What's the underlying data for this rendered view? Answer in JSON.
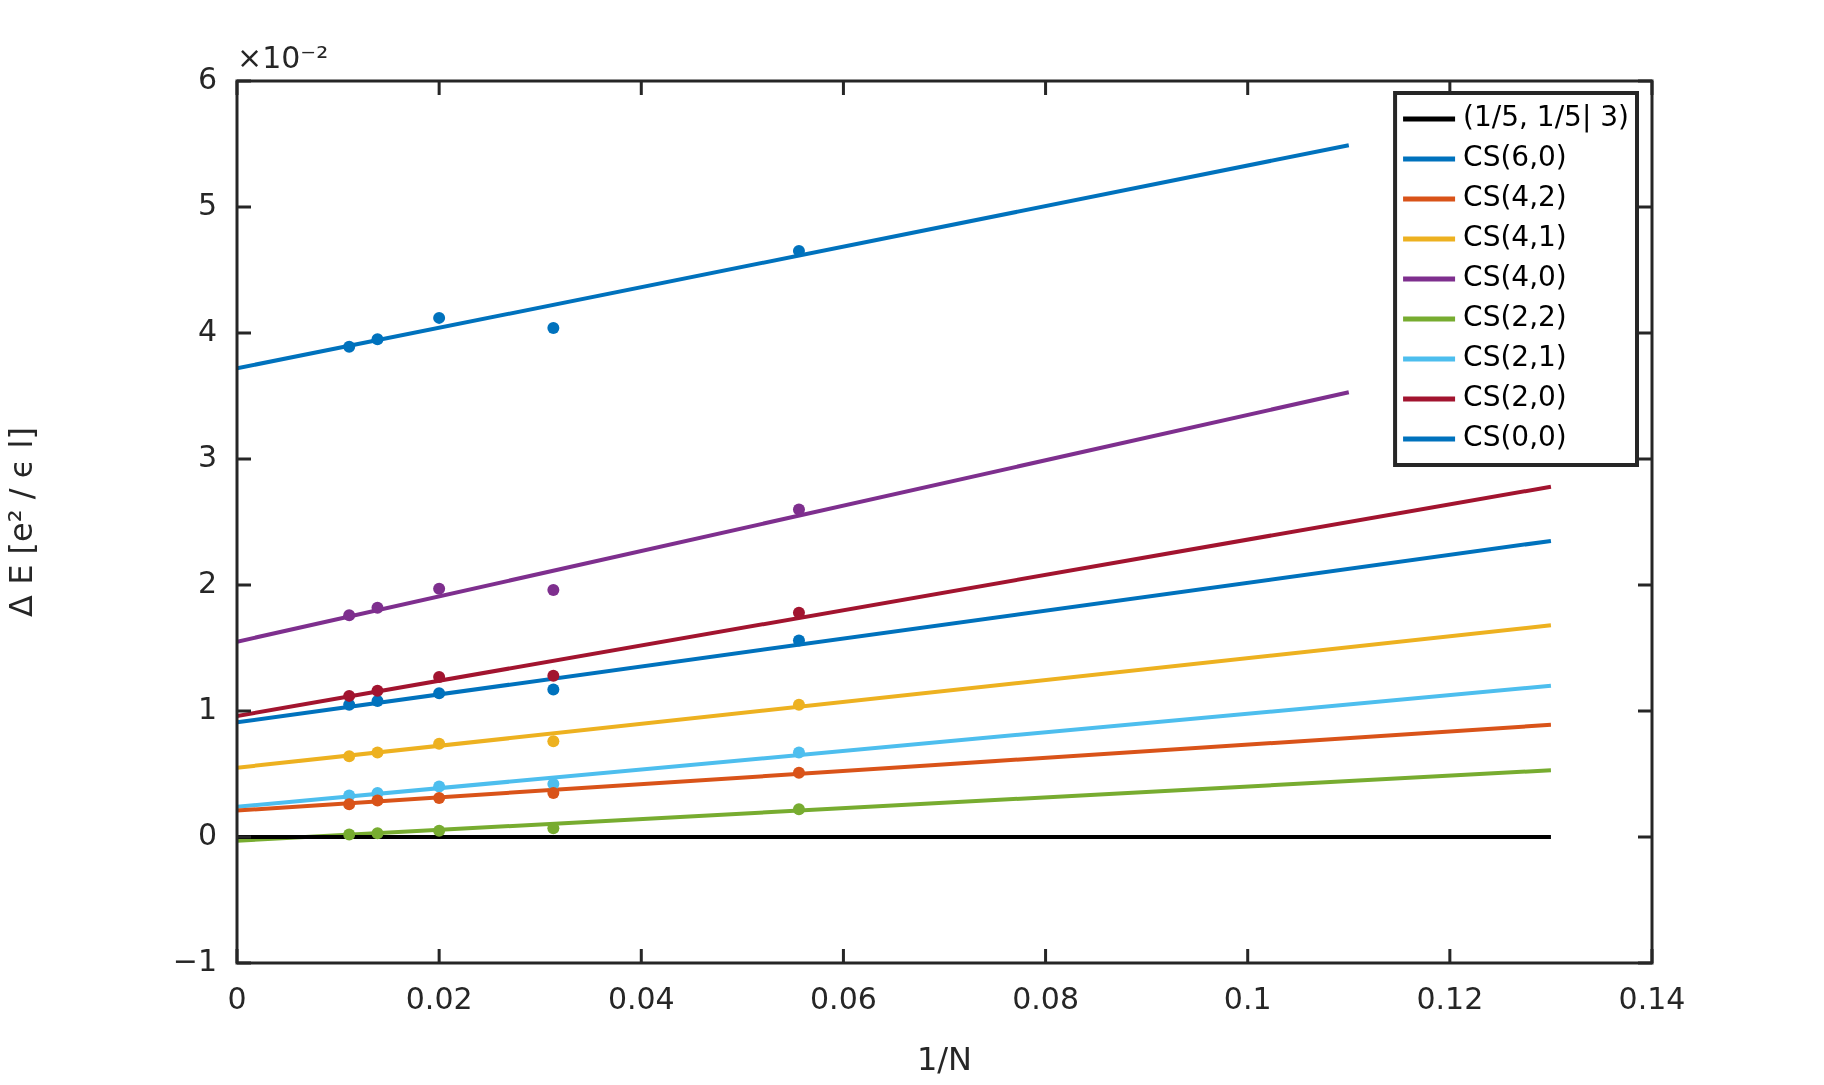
{
  "chart_data": {
    "type": "line",
    "xlabel": "1/N",
    "ylabel": "Δ E [e² / ϵ l]",
    "annotations": [
      "×10⁻²"
    ],
    "xlim": [
      0,
      0.14
    ],
    "xticks": [
      0,
      0.02,
      0.04,
      0.06,
      0.08,
      0.1,
      0.12,
      0.14
    ],
    "ylim": [
      -1,
      6
    ],
    "yticks": [
      {
        "value": -1,
        "label": "−1"
      },
      0,
      1,
      2,
      3,
      4,
      5,
      6
    ],
    "grid": false,
    "legend": "top right",
    "line_style": "solid",
    "series": [
      {
        "name": "(1/5, 1/5| 3)",
        "color": "#000000",
        "type": "line",
        "x": [
          0,
          0.13
        ],
        "values": [
          0,
          0
        ]
      },
      {
        "name": "CS(6,0)",
        "color": "#0072bd",
        "type": "line",
        "x": [
          0,
          0.11
        ],
        "values": [
          3.72,
          5.49
        ]
      },
      {
        "name": "CS(4,2)",
        "color": "#d95319",
        "type": "line",
        "x": [
          0,
          0.13
        ],
        "values": [
          0.21,
          0.89
        ]
      },
      {
        "name": "CS(4,1)",
        "color": "#edb120",
        "type": "line",
        "x": [
          0,
          0.13
        ],
        "values": [
          0.55,
          1.68
        ]
      },
      {
        "name": "CS(4,0)",
        "color": "#7e2f8e",
        "type": "line",
        "x": [
          0,
          0.11
        ],
        "values": [
          1.55,
          3.53
        ]
      },
      {
        "name": "CS(2,2)",
        "color": "#77ac30",
        "type": "line",
        "x": [
          0,
          0.13
        ],
        "values": [
          -0.03,
          0.53
        ]
      },
      {
        "name": "CS(2,1)",
        "color": "#4dbeee",
        "type": "line",
        "x": [
          0,
          0.13
        ],
        "values": [
          0.24,
          1.2
        ]
      },
      {
        "name": "CS(2,0)",
        "color": "#a2142f",
        "type": "line",
        "x": [
          0,
          0.13
        ],
        "values": [
          0.96,
          2.78
        ]
      },
      {
        "name": "CS(0,0)",
        "color": "#0072bd",
        "type": "line",
        "x": [
          0,
          0.13
        ],
        "values": [
          0.91,
          2.35
        ]
      },
      {
        "color": "#0072bd",
        "type": "scatter",
        "marker": "circle",
        "x": [
          0.0111,
          0.0139,
          0.02,
          0.0313,
          0.0556
        ],
        "values": [
          3.89,
          3.95,
          4.12,
          4.04,
          4.65
        ]
      },
      {
        "color": "#d95319",
        "type": "scatter",
        "marker": "circle",
        "x": [
          0.0111,
          0.0139,
          0.02,
          0.0313,
          0.0556
        ],
        "values": [
          0.26,
          0.29,
          0.31,
          0.35,
          0.51
        ]
      },
      {
        "color": "#edb120",
        "type": "scatter",
        "marker": "circle",
        "x": [
          0.0111,
          0.0139,
          0.02,
          0.0313,
          0.0556
        ],
        "values": [
          0.64,
          0.67,
          0.74,
          0.76,
          1.05
        ]
      },
      {
        "color": "#7e2f8e",
        "type": "scatter",
        "marker": "circle",
        "x": [
          0.0111,
          0.0139,
          0.02,
          0.0313,
          0.0556
        ],
        "values": [
          1.76,
          1.82,
          1.97,
          1.96,
          2.6
        ]
      },
      {
        "color": "#77ac30",
        "type": "scatter",
        "marker": "circle",
        "x": [
          0.0111,
          0.0139,
          0.02,
          0.0313,
          0.0556
        ],
        "values": [
          0.02,
          0.03,
          0.05,
          0.07,
          0.22
        ]
      },
      {
        "color": "#4dbeee",
        "type": "scatter",
        "marker": "circle",
        "x": [
          0.0111,
          0.0139,
          0.02,
          0.0313,
          0.0556
        ],
        "values": [
          0.33,
          0.35,
          0.4,
          0.42,
          0.67
        ]
      },
      {
        "color": "#a2142f",
        "type": "scatter",
        "marker": "circle",
        "x": [
          0.0111,
          0.0139,
          0.02,
          0.0313,
          0.0556
        ],
        "values": [
          1.12,
          1.16,
          1.27,
          1.28,
          1.78
        ]
      },
      {
        "color": "#0072bd",
        "type": "scatter",
        "marker": "circle",
        "x": [
          0.0111,
          0.0139,
          0.02,
          0.0313,
          0.0556
        ],
        "values": [
          1.05,
          1.08,
          1.14,
          1.17,
          1.56
        ]
      }
    ]
  }
}
